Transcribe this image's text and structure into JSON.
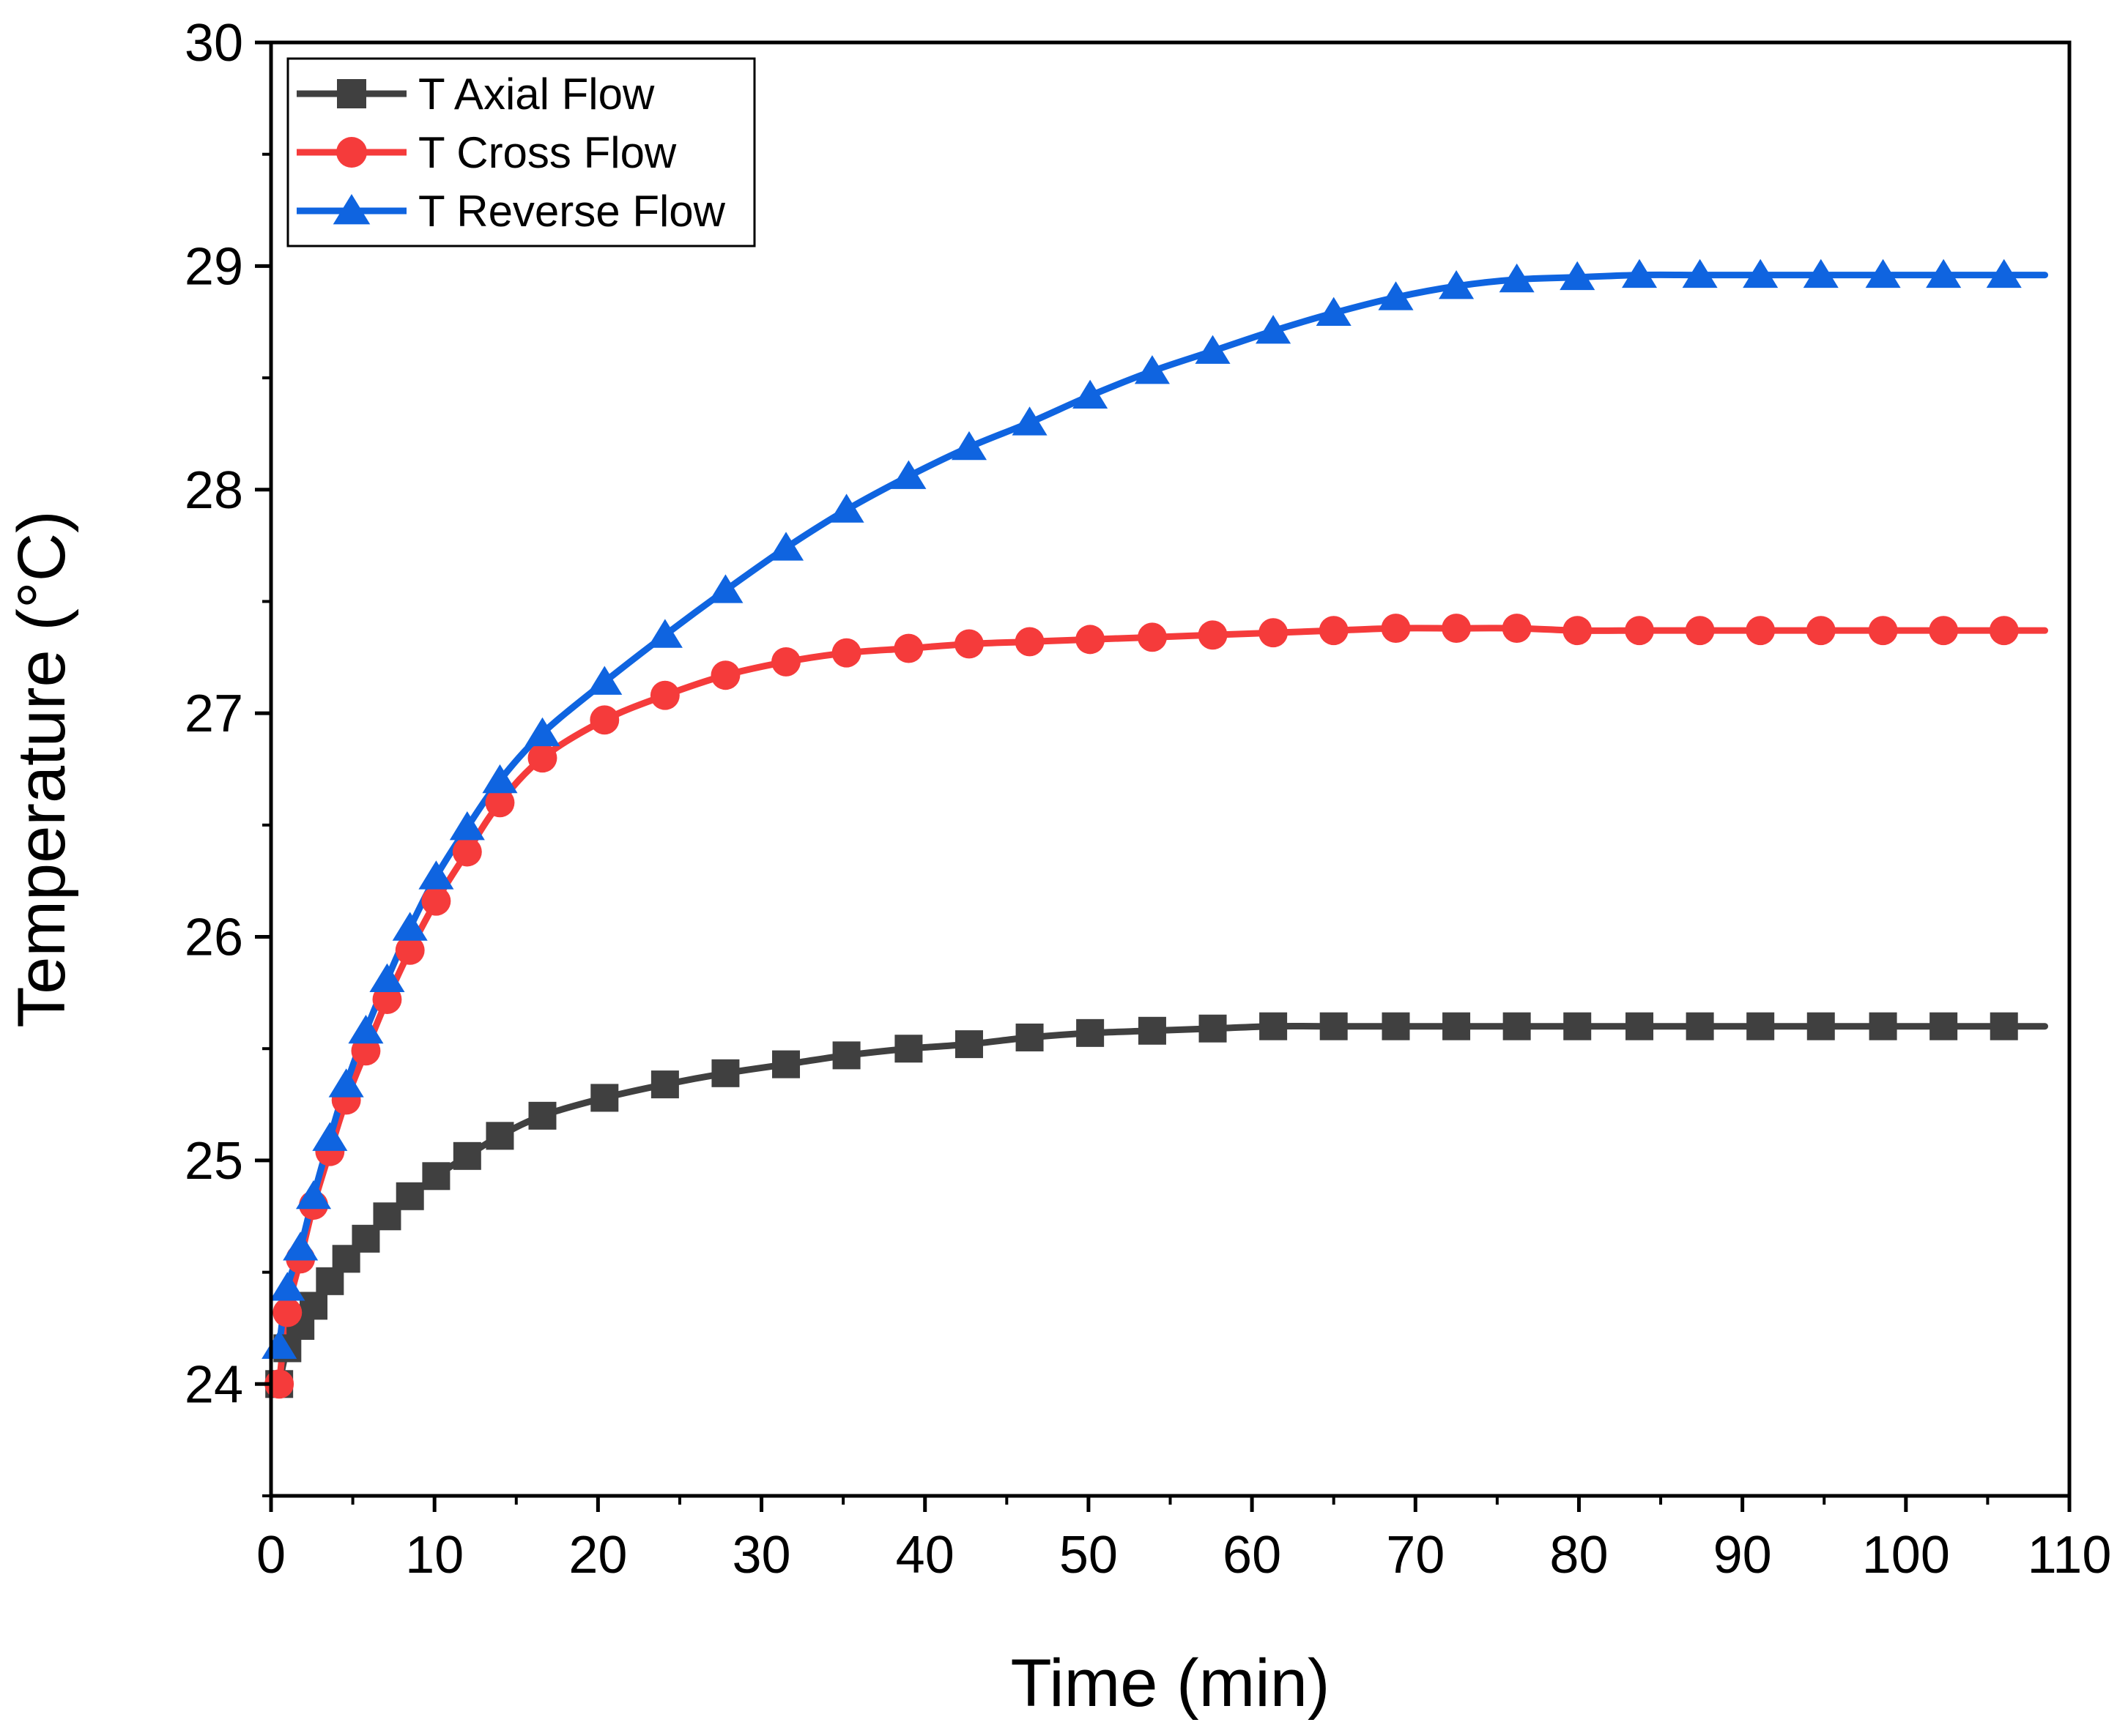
{
  "chart_data": {
    "type": "line",
    "title": "",
    "xlabel": "Time (min)",
    "ylabel": "Temperature (°C)",
    "xlim": [
      0,
      110
    ],
    "ylim": [
      23.5,
      30
    ],
    "xticks": [
      0,
      10,
      20,
      30,
      40,
      50,
      60,
      70,
      80,
      90,
      100,
      110
    ],
    "xtick_labels": [
      "0",
      "10",
      "20",
      "30",
      "40",
      "50",
      "60",
      "70",
      "80",
      "90",
      "100",
      "110"
    ],
    "yticks": [
      24,
      25,
      26,
      27,
      28,
      29,
      30
    ],
    "ytick_labels": [
      "24",
      "25",
      "26",
      "27",
      "28",
      "29",
      "30"
    ],
    "grid": false,
    "legend_position": "top-left",
    "x": [
      0.5,
      1,
      1.8,
      2.6,
      3.6,
      4.6,
      5.8,
      7.1,
      8.5,
      10.1,
      12,
      14,
      16.6,
      20.4,
      24.1,
      27.8,
      31.5,
      35.2,
      39,
      42.7,
      46.4,
      50.1,
      53.9,
      57.6,
      61.3,
      65,
      68.8,
      72.5,
      76.2,
      79.9,
      83.7,
      87.4,
      91.1,
      94.8,
      98.6,
      102.3,
      106
    ],
    "series": [
      {
        "name": "T Axial Flow",
        "color": "#404040",
        "marker": "square",
        "values": [
          24.0,
          24.16,
          24.26,
          24.35,
          24.46,
          24.56,
          24.65,
          24.75,
          24.84,
          24.93,
          25.02,
          25.11,
          25.2,
          25.28,
          25.34,
          25.39,
          25.43,
          25.47,
          25.5,
          25.52,
          25.55,
          25.57,
          25.58,
          25.59,
          25.6,
          25.6,
          25.6,
          25.6,
          25.6,
          25.6,
          25.6,
          25.6,
          25.6,
          25.6,
          25.6,
          25.6,
          25.6
        ]
      },
      {
        "name": "T Cross Flow",
        "color": "#F53B3B",
        "marker": "circle",
        "values": [
          24.0,
          24.32,
          24.56,
          24.8,
          25.04,
          25.27,
          25.49,
          25.72,
          25.94,
          26.16,
          26.38,
          26.6,
          26.8,
          26.97,
          27.08,
          27.17,
          27.23,
          27.27,
          27.29,
          27.31,
          27.32,
          27.33,
          27.34,
          27.35,
          27.36,
          27.37,
          27.38,
          27.38,
          27.38,
          27.37,
          27.37,
          27.37,
          27.37,
          27.37,
          27.37,
          27.37,
          27.37
        ]
      },
      {
        "name": "T Reverse Flow",
        "color": "#0F64E0",
        "marker": "triangle",
        "values": [
          24.17,
          24.43,
          24.61,
          24.84,
          25.1,
          25.34,
          25.58,
          25.81,
          26.04,
          26.27,
          26.49,
          26.7,
          26.91,
          27.14,
          27.35,
          27.55,
          27.74,
          27.91,
          28.06,
          28.19,
          28.3,
          28.42,
          28.53,
          28.62,
          28.71,
          28.79,
          28.86,
          28.91,
          28.94,
          28.95,
          28.96,
          28.96,
          28.96,
          28.96,
          28.96,
          28.96,
          28.96
        ]
      }
    ]
  }
}
